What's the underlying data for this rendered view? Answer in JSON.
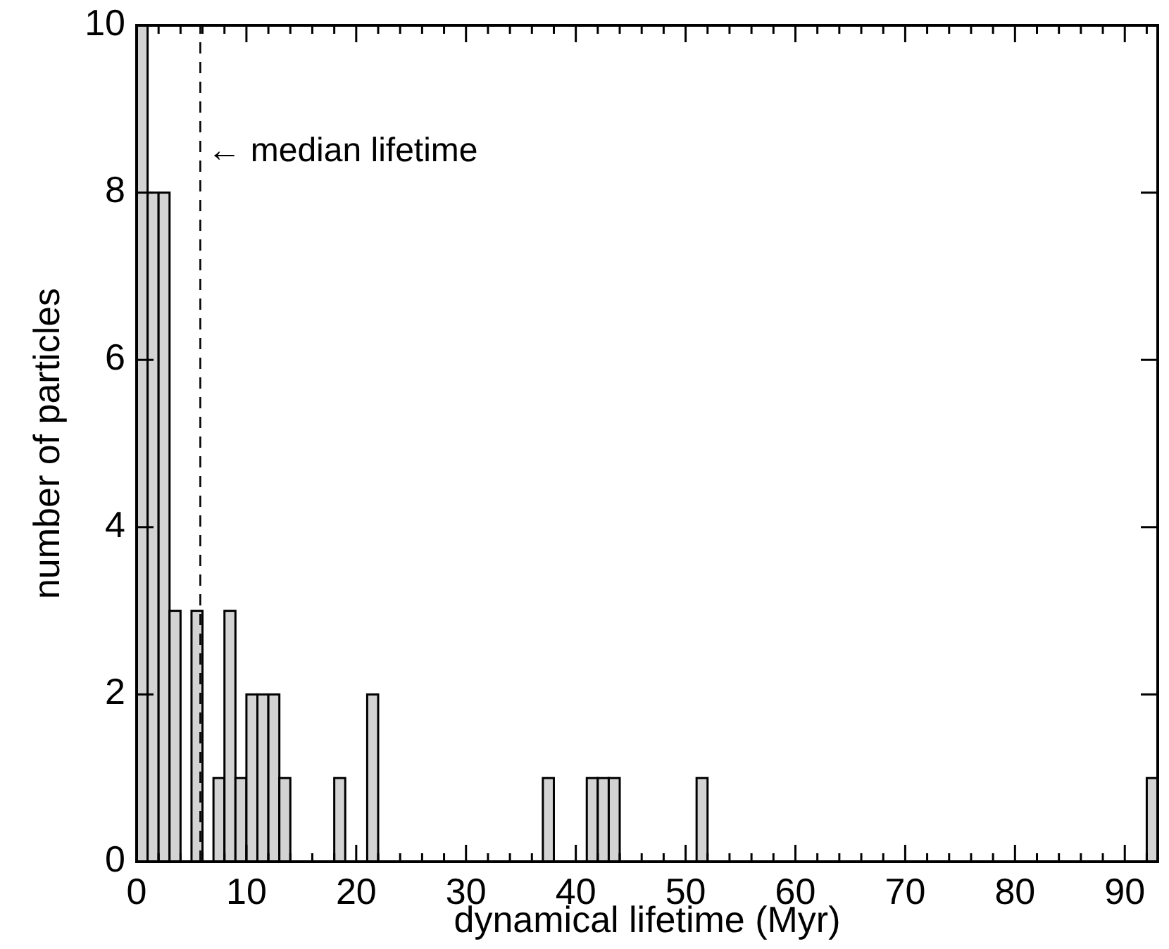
{
  "chart_data": {
    "type": "histogram",
    "xlabel": "dynamical lifetime (Myr)",
    "ylabel": "number of particles",
    "bins": [
      0,
      1,
      2,
      3,
      4,
      5,
      6,
      7,
      8,
      9,
      10,
      11,
      12,
      13,
      14,
      15,
      16,
      17,
      18,
      19,
      20,
      21,
      22,
      23,
      24,
      25,
      26,
      27,
      28,
      29,
      30,
      31,
      32,
      33,
      34,
      35,
      36,
      37,
      38,
      39,
      40,
      41,
      42,
      43,
      44,
      45,
      46,
      47,
      48,
      49,
      50,
      51,
      52,
      53,
      54,
      55,
      56,
      57,
      58,
      59,
      60,
      61,
      62,
      63,
      64,
      65,
      66,
      67,
      68,
      69,
      70,
      71,
      72,
      73,
      74,
      75,
      76,
      77,
      78,
      79,
      80,
      81,
      82,
      83,
      84,
      85,
      86,
      87,
      88,
      89,
      90,
      91,
      92,
      93
    ],
    "values": [
      10,
      8,
      8,
      3,
      0,
      3,
      0,
      1,
      3,
      1,
      2,
      2,
      2,
      1,
      0,
      0,
      0,
      0,
      1,
      0,
      0,
      2,
      0,
      0,
      0,
      0,
      0,
      0,
      0,
      0,
      0,
      0,
      0,
      0,
      0,
      0,
      0,
      1,
      0,
      0,
      0,
      1,
      1,
      1,
      0,
      0,
      0,
      0,
      0,
      0,
      0,
      1,
      0,
      0,
      0,
      0,
      0,
      0,
      0,
      0,
      0,
      0,
      0,
      0,
      0,
      0,
      0,
      0,
      0,
      0,
      0,
      0,
      0,
      0,
      0,
      0,
      0,
      0,
      0,
      0,
      0,
      0,
      0,
      0,
      0,
      0,
      0,
      0,
      0,
      0,
      0,
      0,
      1
    ],
    "color": "#d3d3d3",
    "xlim": [
      0,
      93
    ],
    "xticks": [
      0,
      {
        "value": 2,
        "label": null
      },
      {
        "value": 4,
        "label": null
      },
      {
        "value": 6,
        "label": null
      },
      {
        "value": 8,
        "label": null
      },
      10,
      {
        "value": 12,
        "label": null
      },
      {
        "value": 14,
        "label": null
      },
      {
        "value": 16,
        "label": null
      },
      {
        "value": 18,
        "label": null
      },
      20,
      {
        "value": 22,
        "label": null
      },
      {
        "value": 24,
        "label": null
      },
      {
        "value": 26,
        "label": null
      },
      {
        "value": 28,
        "label": null
      },
      30,
      {
        "value": 32,
        "label": null
      },
      {
        "value": 34,
        "label": null
      },
      {
        "value": 36,
        "label": null
      },
      {
        "value": 38,
        "label": null
      },
      40,
      {
        "value": 42,
        "label": null
      },
      {
        "value": 44,
        "label": null
      },
      {
        "value": 46,
        "label": null
      },
      {
        "value": 48,
        "label": null
      },
      50,
      {
        "value": 52,
        "label": null
      },
      {
        "value": 54,
        "label": null
      },
      {
        "value": 56,
        "label": null
      },
      {
        "value": 58,
        "label": null
      },
      60,
      {
        "value": 62,
        "label": null
      },
      {
        "value": 64,
        "label": null
      },
      {
        "value": 66,
        "label": null
      },
      {
        "value": 68,
        "label": null
      },
      70,
      {
        "value": 72,
        "label": null
      },
      {
        "value": 74,
        "label": null
      },
      {
        "value": 76,
        "label": null
      },
      {
        "value": 78,
        "label": null
      },
      80,
      {
        "value": 82,
        "label": null
      },
      {
        "value": 84,
        "label": null
      },
      {
        "value": 86,
        "label": null
      },
      {
        "value": 88,
        "label": null
      },
      90,
      {
        "value": 92,
        "label": null
      }
    ],
    "ylim": [
      0,
      10
    ],
    "yticks": [
      0,
      2,
      4,
      6,
      8,
      10
    ],
    "grid": false,
    "ref_lines": [
      {
        "axis": "x",
        "value": 5.8,
        "label": "← median lifetime",
        "line_style": "dashed",
        "color": "#000000"
      }
    ]
  }
}
